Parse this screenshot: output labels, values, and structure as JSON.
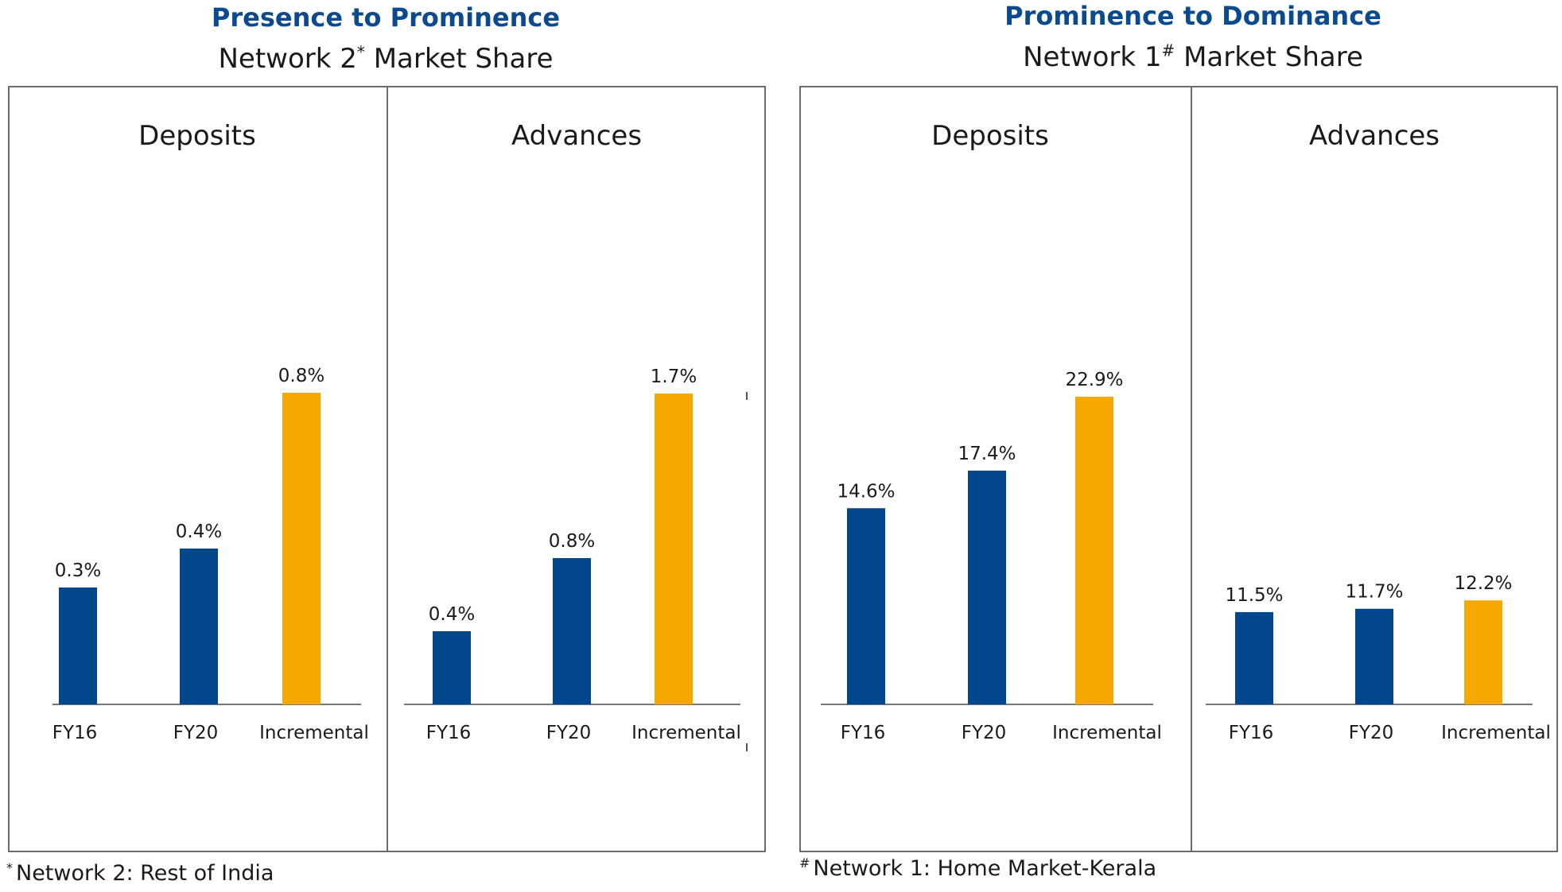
{
  "colors": {
    "blue": "#02468c",
    "gold": "#f5a800",
    "axis": "#777777",
    "heading": "#0b4a8f"
  },
  "left": {
    "heading": "Presence to Prominence",
    "subtitle": "Network 2",
    "subtitle_mark": "*",
    "subtitle_suffix": "Market Share",
    "footnote_mark": "*",
    "footnote": "Network 2: Rest of India"
  },
  "right": {
    "heading": "Prominence to Dominance",
    "subtitle": "Network 1",
    "subtitle_mark": "#",
    "subtitle_suffix": "Market Share",
    "footnote_mark": "#",
    "footnote": "Network 1: Home Market-Kerala"
  },
  "chart_data": [
    {
      "type": "bar",
      "title": "Deposits",
      "categories": [
        "FY16",
        "FY20",
        "Incremental"
      ],
      "values": [
        0.3,
        0.4,
        0.8
      ],
      "labels": [
        "0.3%",
        "0.4%",
        "0.8%"
      ]
    },
    {
      "type": "bar",
      "title": "Advances",
      "categories": [
        "FY16",
        "FY20",
        "Incremental"
      ],
      "values": [
        0.4,
        0.8,
        1.7
      ],
      "labels": [
        "0.4%",
        "0.8%",
        "1.7%"
      ]
    },
    {
      "type": "bar",
      "title": "Deposits",
      "categories": [
        "FY16",
        "FY20",
        "Incremental"
      ],
      "values": [
        14.6,
        17.4,
        22.9
      ],
      "labels": [
        "14.6%",
        "17.4%",
        "22.9%"
      ]
    },
    {
      "type": "bar",
      "title": "Advances",
      "categories": [
        "FY16",
        "FY20",
        "Incremental"
      ],
      "values": [
        11.5,
        11.7,
        12.2
      ],
      "labels": [
        "11.5%",
        "11.7%",
        "12.2%"
      ]
    }
  ]
}
